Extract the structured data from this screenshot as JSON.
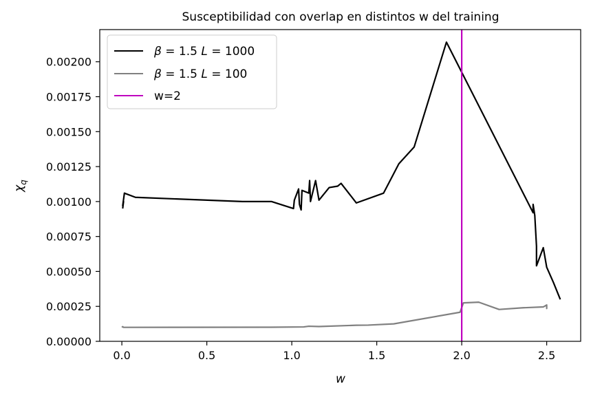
{
  "chart_data": {
    "type": "line",
    "title": "Susceptibilidad con overlap en distintos w del training",
    "xlabel": "w",
    "ylabel_main": "χ",
    "ylabel_sub": "q",
    "xlim": [
      -0.13,
      2.7
    ],
    "ylim": [
      0,
      0.00223
    ],
    "xticks": [
      0.0,
      0.5,
      1.0,
      1.5,
      2.0,
      2.5
    ],
    "xtick_labels": [
      "0.0",
      "0.5",
      "1.0",
      "1.5",
      "2.0",
      "2.5"
    ],
    "yticks": [
      0,
      0.00025,
      0.0005,
      0.00075,
      0.001,
      0.00125,
      0.0015,
      0.00175,
      0.002
    ],
    "ytick_labels": [
      "0.00000",
      "0.00025",
      "0.00050",
      "0.00075",
      "0.00100",
      "0.00125",
      "0.00150",
      "0.00175",
      "0.00200"
    ],
    "legend_position": "top-left",
    "series": [
      {
        "name": "β = 1.5 L = 1000",
        "legend_parts": {
          "beta": "β",
          "beta_eq": " = 1.5 ",
          "L": "L",
          "L_eq": " = 1000"
        },
        "color": "#000000",
        "points": [
          [
            0.005,
            0.00095
          ],
          [
            0.01,
            0.001
          ],
          [
            0.005,
            0.00097
          ],
          [
            0.015,
            0.00106
          ],
          [
            0.08,
            0.00103
          ],
          [
            0.71,
            0.001
          ],
          [
            0.88,
            0.001
          ],
          [
            1.01,
            0.00095
          ],
          [
            1.015,
            0.00101
          ],
          [
            1.04,
            0.00109
          ],
          [
            1.045,
            0.00098
          ],
          [
            1.055,
            0.00094
          ],
          [
            1.06,
            0.00108
          ],
          [
            1.1,
            0.00106
          ],
          [
            1.105,
            0.00115
          ],
          [
            1.11,
            0.001
          ],
          [
            1.14,
            0.00115
          ],
          [
            1.16,
            0.00101
          ],
          [
            1.22,
            0.0011
          ],
          [
            1.27,
            0.00111
          ],
          [
            1.29,
            0.00113
          ],
          [
            1.38,
            0.00099
          ],
          [
            1.54,
            0.00106
          ],
          [
            1.63,
            0.00127
          ],
          [
            1.72,
            0.00139
          ],
          [
            1.91,
            0.00214
          ],
          [
            2.42,
            0.00092
          ],
          [
            2.42,
            0.00098
          ],
          [
            2.43,
            0.0009
          ],
          [
            2.44,
            0.00068
          ],
          [
            2.44,
            0.00054
          ],
          [
            2.48,
            0.00067
          ],
          [
            2.5,
            0.00053
          ],
          [
            2.54,
            0.00042
          ],
          [
            2.58,
            0.0003
          ]
        ]
      },
      {
        "name": "β = 1.5 L = 100",
        "legend_parts": {
          "beta": "β",
          "beta_eq": " = 1.5 ",
          "L": "L",
          "L_eq": " = 100"
        },
        "color": "#808080",
        "points": [
          [
            0.0,
            0.0001
          ],
          [
            0.005,
            0.000105
          ],
          [
            0.01,
            0.0001
          ],
          [
            0.88,
            0.000101
          ],
          [
            1.07,
            0.000103
          ],
          [
            1.1,
            0.000108
          ],
          [
            1.16,
            0.000106
          ],
          [
            1.38,
            0.000115
          ],
          [
            1.45,
            0.000116
          ],
          [
            1.6,
            0.000125
          ],
          [
            1.99,
            0.000208
          ],
          [
            2.01,
            0.000275
          ],
          [
            2.1,
            0.00028
          ],
          [
            2.22,
            0.000228
          ],
          [
            2.36,
            0.00024
          ],
          [
            2.48,
            0.000246
          ],
          [
            2.5,
            0.00026
          ],
          [
            2.5,
            0.000235
          ],
          [
            2.5,
            0.000252
          ]
        ]
      }
    ],
    "vline": {
      "name": "w=2",
      "x": 2.0,
      "color": "#bf00bf"
    }
  }
}
